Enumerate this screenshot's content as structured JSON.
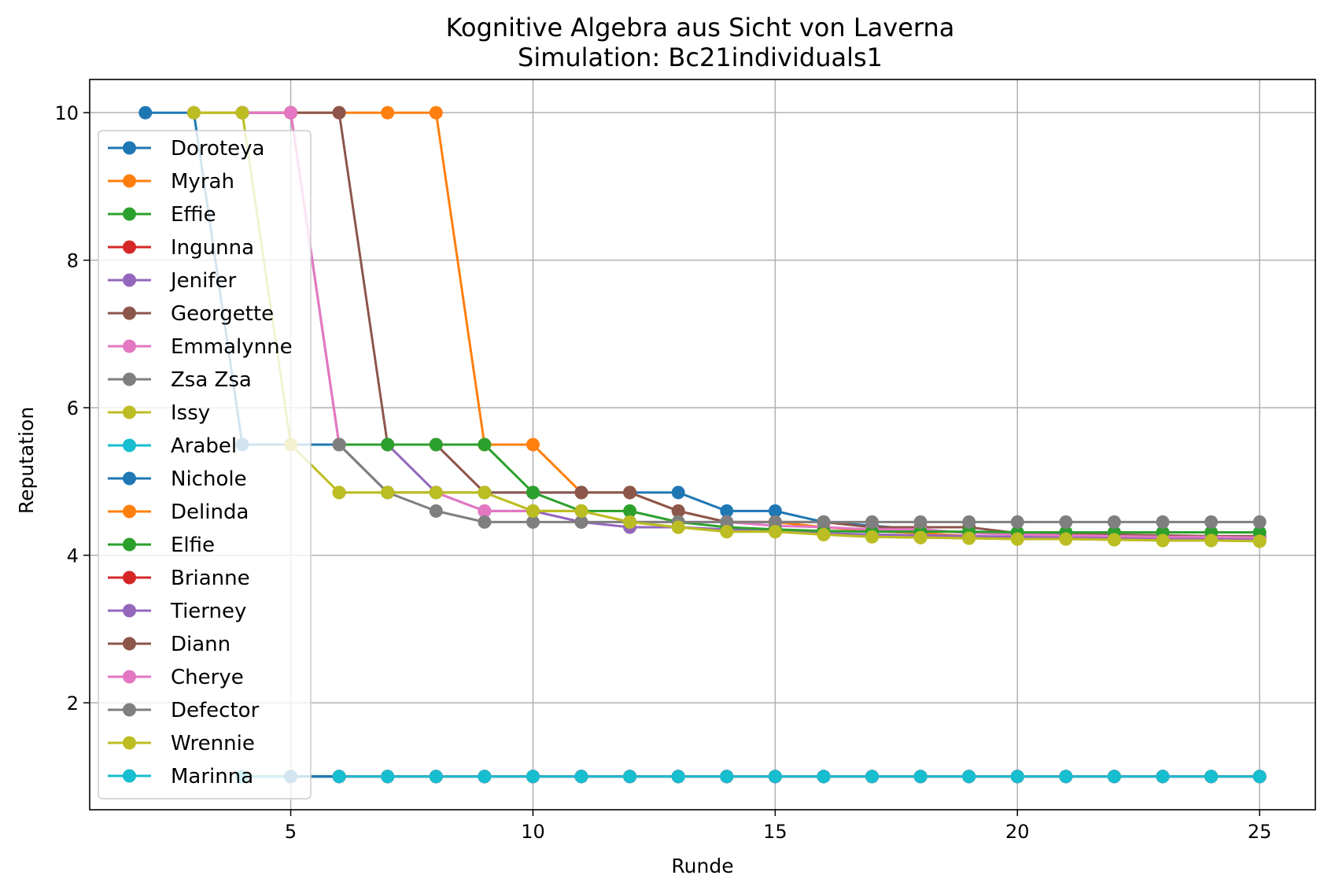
{
  "chart_data": {
    "type": "line",
    "title": "Kognitive Algebra aus Sicht von Laverna",
    "subtitle": "Simulation: Bc21individuals1",
    "xlabel": "Runde",
    "ylabel": "Reputation",
    "xlim": [
      0.85,
      26.15
    ],
    "ylim": [
      0.55,
      10.45
    ],
    "xticks": [
      5,
      10,
      15,
      20,
      25
    ],
    "yticks": [
      2,
      4,
      6,
      8,
      10
    ],
    "grid": true,
    "legend_position": "upper-left",
    "series": [
      {
        "name": "Doroteya",
        "color": "#1f77b4",
        "x": [
          2,
          3,
          4,
          5,
          6,
          7,
          8,
          9,
          10,
          11,
          12,
          13,
          14,
          15,
          16,
          17,
          18,
          19,
          20,
          21,
          22,
          23,
          24,
          25
        ],
        "y": [
          10,
          10,
          5.5,
          5.5,
          5.5,
          4.85,
          4.85,
          4.85,
          4.85,
          4.85,
          4.85,
          4.85,
          4.6,
          4.6,
          4.45,
          4.4,
          4.35,
          4.3,
          4.3,
          4.28,
          4.27,
          4.26,
          4.25,
          4.25
        ]
      },
      {
        "name": "Myrah",
        "color": "#ff7f0e",
        "x": [
          3,
          4,
          5,
          6,
          7,
          8,
          9,
          10,
          11,
          12,
          13,
          14,
          15,
          16,
          17,
          18,
          19,
          20,
          21,
          22,
          23,
          24,
          25
        ],
        "y": [
          10,
          10,
          10,
          10,
          10,
          10,
          5.5,
          5.5,
          4.85,
          4.85,
          4.6,
          4.45,
          4.45,
          4.38,
          4.33,
          4.3,
          4.26,
          4.24,
          4.23,
          4.22,
          4.22,
          4.21,
          4.2
        ]
      },
      {
        "name": "Effie",
        "color": "#2ca02c",
        "x": [
          4,
          5,
          6,
          7,
          8,
          9,
          10,
          11,
          12,
          13,
          14,
          15,
          16,
          17,
          18,
          19,
          20,
          21,
          22,
          23,
          24,
          25
        ],
        "y": [
          1,
          1,
          1,
          1,
          1,
          1,
          1,
          1,
          1,
          1,
          1,
          1,
          1,
          1,
          1,
          1,
          1,
          1,
          1,
          1,
          1,
          1
        ]
      },
      {
        "name": "Ingunna",
        "color": "#d62728",
        "x": [
          4,
          5,
          6,
          7,
          8,
          9,
          10,
          11,
          12,
          13,
          14,
          15,
          16,
          17,
          18,
          19,
          20,
          21,
          22,
          23,
          24,
          25
        ],
        "y": [
          1,
          1,
          1,
          1,
          1,
          1,
          1,
          1,
          1,
          1,
          1,
          1,
          1,
          1,
          1,
          1,
          1,
          1,
          1,
          1,
          1,
          1
        ]
      },
      {
        "name": "Jenifer",
        "color": "#9467bd",
        "x": [
          4,
          5,
          6,
          7,
          8,
          9,
          10,
          11,
          12,
          13,
          14,
          15,
          16,
          17,
          18,
          19,
          20,
          21,
          22,
          23,
          24,
          25
        ],
        "y": [
          10,
          10,
          5.5,
          5.5,
          4.85,
          4.6,
          4.6,
          4.45,
          4.38,
          4.38,
          4.35,
          4.32,
          4.3,
          4.28,
          4.27,
          4.26,
          4.25,
          4.24,
          4.24,
          4.23,
          4.23,
          4.22
        ]
      },
      {
        "name": "Georgette",
        "color": "#8c564b",
        "x": [
          4,
          5,
          6,
          7,
          8,
          9,
          10,
          11,
          12,
          13,
          14,
          15,
          16,
          17,
          18,
          19,
          20,
          21,
          22,
          23,
          24,
          25
        ],
        "y": [
          10,
          10,
          10,
          5.5,
          5.5,
          4.85,
          4.85,
          4.85,
          4.85,
          4.6,
          4.45,
          4.45,
          4.45,
          4.38,
          4.38,
          4.38,
          4.3,
          4.28,
          4.28,
          4.27,
          4.26,
          4.26
        ]
      },
      {
        "name": "Emmalynne",
        "color": "#e377c2",
        "x": [
          4,
          5,
          6,
          7,
          8,
          9,
          10,
          11,
          12,
          13,
          14,
          15,
          16,
          17,
          18,
          19,
          20,
          21,
          22,
          23,
          24,
          25
        ],
        "y": [
          10,
          10,
          5.5,
          4.85,
          4.85,
          4.6,
          4.6,
          4.6,
          4.45,
          4.45,
          4.45,
          4.4,
          4.38,
          4.35,
          4.35,
          4.3,
          4.28,
          4.27,
          4.26,
          4.25,
          4.25,
          4.24
        ]
      },
      {
        "name": "Zsa Zsa",
        "color": "#7f7f7f",
        "x": [
          4,
          5,
          6,
          7,
          8,
          9,
          10,
          11,
          12,
          13,
          14,
          15,
          16,
          17,
          18,
          19,
          20,
          21,
          22,
          23,
          24,
          25
        ],
        "y": [
          1,
          1,
          1,
          1,
          1,
          1,
          1,
          1,
          1,
          1,
          1,
          1,
          1,
          1,
          1,
          1,
          1,
          1,
          1,
          1,
          1,
          1
        ]
      },
      {
        "name": "Issy",
        "color": "#bcbd22",
        "x": [
          3,
          4,
          5,
          6,
          7,
          8,
          9,
          10,
          11,
          12,
          13,
          14,
          15,
          16,
          17,
          18,
          19,
          20,
          21,
          22,
          23,
          24,
          25
        ],
        "y": [
          10,
          10,
          5.5,
          4.85,
          4.85,
          4.85,
          4.85,
          4.6,
          4.6,
          4.45,
          4.38,
          4.32,
          4.32,
          4.28,
          4.25,
          4.24,
          4.23,
          4.22,
          4.22,
          4.21,
          4.2,
          4.2,
          4.19
        ]
      },
      {
        "name": "Arabel",
        "color": "#17becf",
        "x": [
          4,
          5,
          6,
          7,
          8,
          9,
          10,
          11,
          12,
          13,
          14,
          15,
          16,
          17,
          18,
          19,
          20,
          21,
          22,
          23,
          24,
          25
        ],
        "y": [
          1,
          1,
          1,
          1,
          1,
          1,
          1,
          1,
          1,
          1,
          1,
          1,
          1,
          1,
          1,
          1,
          1,
          1,
          1,
          1,
          1,
          1
        ]
      },
      {
        "name": "Nichole",
        "color": "#1f77b4",
        "x": [
          5,
          6,
          7,
          8,
          9,
          10,
          11,
          12,
          13,
          14,
          15,
          16,
          17,
          18,
          19,
          20,
          21,
          22,
          23,
          24,
          25
        ],
        "y": [
          1,
          1,
          1,
          1,
          1,
          1,
          1,
          1,
          1,
          1,
          1,
          1,
          1,
          1,
          1,
          1,
          1,
          1,
          1,
          1,
          1
        ]
      },
      {
        "name": "Delinda",
        "color": "#ff7f0e",
        "x": [
          6,
          7,
          8,
          9,
          10,
          11,
          12,
          13,
          14,
          15,
          16,
          17,
          18,
          19,
          20,
          21,
          22,
          23,
          24,
          25
        ],
        "y": [
          1,
          1,
          1,
          1,
          1,
          1,
          1,
          1,
          1,
          1,
          1,
          1,
          1,
          1,
          1,
          1,
          1,
          1,
          1,
          1
        ]
      },
      {
        "name": "Elfie",
        "color": "#2ca02c",
        "x": [
          6,
          7,
          8,
          9,
          10,
          11,
          12,
          13,
          14,
          15,
          16,
          17,
          18,
          19,
          20,
          21,
          22,
          23,
          24,
          25
        ],
        "y": [
          5.5,
          5.5,
          5.5,
          5.5,
          4.85,
          4.6,
          4.6,
          4.45,
          4.38,
          4.35,
          4.33,
          4.32,
          4.32,
          4.32,
          4.31,
          4.31,
          4.31,
          4.31,
          4.31,
          4.31
        ]
      },
      {
        "name": "Brianne",
        "color": "#d62728",
        "x": [
          6,
          7,
          8,
          9,
          10,
          11,
          12,
          13,
          14,
          15,
          16,
          17,
          18,
          19,
          20,
          21,
          22,
          23,
          24,
          25
        ],
        "y": [
          1,
          1,
          1,
          1,
          1,
          1,
          1,
          1,
          1,
          1,
          1,
          1,
          1,
          1,
          1,
          1,
          1,
          1,
          1,
          1
        ]
      },
      {
        "name": "Tierney",
        "color": "#9467bd",
        "x": [
          6,
          7,
          8,
          9,
          10,
          11,
          12,
          13,
          14,
          15,
          16,
          17,
          18,
          19,
          20,
          21,
          22,
          23,
          24,
          25
        ],
        "y": [
          1,
          1,
          1,
          1,
          1,
          1,
          1,
          1,
          1,
          1,
          1,
          1,
          1,
          1,
          1,
          1,
          1,
          1,
          1,
          1
        ]
      },
      {
        "name": "Diann",
        "color": "#8c564b",
        "x": [
          6,
          7,
          8,
          9,
          10,
          11,
          12,
          13,
          14,
          15,
          16,
          17,
          18,
          19,
          20,
          21,
          22,
          23,
          24,
          25
        ],
        "y": [
          1,
          1,
          1,
          1,
          1,
          1,
          1,
          1,
          1,
          1,
          1,
          1,
          1,
          1,
          1,
          1,
          1,
          1,
          1,
          1
        ]
      },
      {
        "name": "Cherye",
        "color": "#e377c2",
        "x": [
          6,
          7,
          8,
          9,
          10,
          11,
          12,
          13,
          14,
          15,
          16,
          17,
          18,
          19,
          20,
          21,
          22,
          23,
          24,
          25
        ],
        "y": [
          1,
          1,
          1,
          1,
          1,
          1,
          1,
          1,
          1,
          1,
          1,
          1,
          1,
          1,
          1,
          1,
          1,
          1,
          1,
          1
        ]
      },
      {
        "name": "Defector",
        "color": "#7f7f7f",
        "x": [
          6,
          7,
          8,
          9,
          10,
          11,
          12,
          13,
          14,
          15,
          16,
          17,
          18,
          19,
          20,
          21,
          22,
          23,
          24,
          25
        ],
        "y": [
          5.5,
          4.85,
          4.6,
          4.45,
          4.45,
          4.45,
          4.45,
          4.45,
          4.45,
          4.45,
          4.45,
          4.45,
          4.45,
          4.45,
          4.45,
          4.45,
          4.45,
          4.45,
          4.45,
          4.45
        ]
      },
      {
        "name": "Wrennie",
        "color": "#bcbd22",
        "x": [
          6,
          7,
          8,
          9,
          10,
          11,
          12,
          13,
          14,
          15,
          16,
          17,
          18,
          19,
          20,
          21,
          22,
          23,
          24,
          25
        ],
        "y": [
          4.85,
          4.85,
          4.85,
          4.85,
          4.6,
          4.6,
          4.45,
          4.38,
          4.32,
          4.32,
          4.28,
          4.25,
          4.24,
          4.23,
          4.22,
          4.22,
          4.21,
          4.2,
          4.2,
          4.19
        ]
      },
      {
        "name": "Marinna",
        "color": "#17becf",
        "x": [
          6,
          7,
          8,
          9,
          10,
          11,
          12,
          13,
          14,
          15,
          16,
          17,
          18,
          19,
          20,
          21,
          22,
          23,
          24,
          25
        ],
        "y": [
          1,
          1,
          1,
          1,
          1,
          1,
          1,
          1,
          1,
          1,
          1,
          1,
          1,
          1,
          1,
          1,
          1,
          1,
          1,
          1
        ]
      }
    ]
  }
}
